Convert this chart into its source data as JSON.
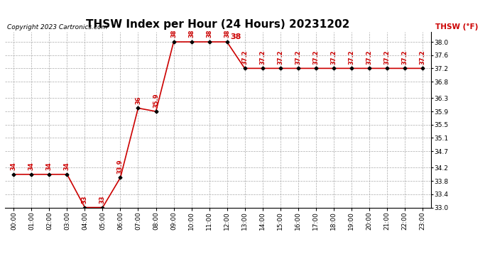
{
  "title": "THSW Index per Hour (24 Hours) 20231202",
  "copyright": "Copyright 2023 Cartronics.com",
  "legend_label": "THSW (°F)",
  "max_label": "38",
  "hours": [
    0,
    1,
    2,
    3,
    4,
    5,
    6,
    7,
    8,
    9,
    10,
    11,
    12,
    13,
    14,
    15,
    16,
    17,
    18,
    19,
    20,
    21,
    22,
    23
  ],
  "values": [
    34.0,
    34.0,
    34.0,
    34.0,
    33.0,
    33.0,
    33.9,
    36.0,
    35.9,
    38.0,
    38.0,
    38.0,
    38.0,
    37.2,
    37.2,
    37.2,
    37.2,
    37.2,
    37.2,
    37.2,
    37.2,
    37.2,
    37.2,
    37.2
  ],
  "ylim": [
    33.0,
    38.3
  ],
  "yticks": [
    33.0,
    33.4,
    33.8,
    34.2,
    34.7,
    35.1,
    35.5,
    35.9,
    36.3,
    36.8,
    37.2,
    37.6,
    38.0
  ],
  "line_color": "#cc0000",
  "marker_color": "#000000",
  "bg_color": "#ffffff",
  "grid_color": "#aaaaaa",
  "title_color": "#000000",
  "copyright_color": "#000000",
  "legend_color": "#cc0000",
  "max_label_color": "#cc0000",
  "data_label_color": "#cc0000",
  "title_fontsize": 11,
  "axis_fontsize": 6.5,
  "data_label_fontsize": 6,
  "copyright_fontsize": 6.5
}
